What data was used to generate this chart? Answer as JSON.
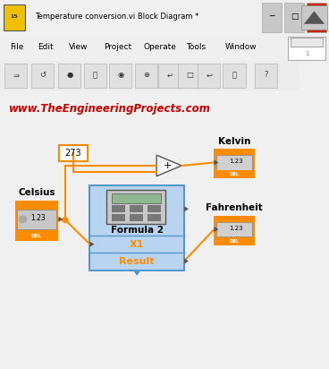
{
  "title_bar_text": "Temperature conversion.vi Block Diagram *",
  "menu_items": [
    "File",
    "Edit",
    "View",
    "Project",
    "Operate",
    "Tools",
    "Window"
  ],
  "watermark": "www.TheEngineeringProjects.com",
  "watermark_color": "#cc0000",
  "bg_color": "#f0f0f0",
  "canvas_color": "#ffffff",
  "orange": "#ff8c00",
  "blue_fill": "#b8d4f0",
  "wire_color": "#ff8c00",
  "wire_lw": 1.5,
  "title_icon_color": "#f0c000",
  "scrollbar_color": "#d4d0c8"
}
